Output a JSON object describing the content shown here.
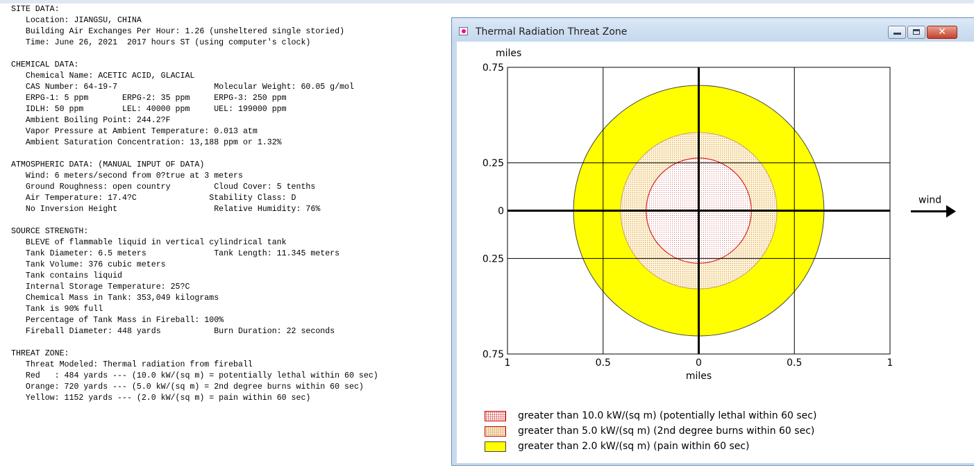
{
  "report": {
    "lines": [
      "SITE DATA:",
      "   Location: JIANGSU, CHINA",
      "   Building Air Exchanges Per Hour: 1.26 (unsheltered single storied)",
      "   Time: June 26, 2021  2017 hours ST (using computer's clock)",
      "",
      "CHEMICAL DATA:",
      "   Chemical Name: ACETIC ACID, GLACIAL",
      "   CAS Number: 64-19-7                    Molecular Weight: 60.05 g/mol",
      "   ERPG-1: 5 ppm       ERPG-2: 35 ppm     ERPG-3: 250 ppm",
      "   IDLH: 50 ppm        LEL: 40000 ppm     UEL: 199000 ppm",
      "   Ambient Boiling Point: 244.2?F",
      "   Vapor Pressure at Ambient Temperature: 0.013 atm",
      "   Ambient Saturation Concentration: 13,188 ppm or 1.32%",
      "",
      "ATMOSPHERIC DATA: (MANUAL INPUT OF DATA)",
      "   Wind: 6 meters/second from 0?true at 3 meters",
      "   Ground Roughness: open country         Cloud Cover: 5 tenths",
      "   Air Temperature: 17.4?C               Stability Class: D",
      "   No Inversion Height                    Relative Humidity: 76%",
      "",
      "SOURCE STRENGTH:",
      "   BLEVE of flammable liquid in vertical cylindrical tank",
      "   Tank Diameter: 6.5 meters              Tank Length: 11.345 meters",
      "   Tank Volume: 376 cubic meters",
      "   Tank contains liquid",
      "   Internal Storage Temperature: 25?C",
      "   Chemical Mass in Tank: 353,049 kilograms",
      "   Tank is 90% full",
      "   Percentage of Tank Mass in Fireball: 100%",
      "   Fireball Diameter: 448 yards           Burn Duration: 22 seconds",
      "",
      "THREAT ZONE:",
      "   Threat Modeled: Thermal radiation from fireball",
      "   Red   : 484 yards --- (10.0 kW/(sq m) = potentially lethal within 60 sec)",
      "   Orange: 720 yards --- (5.0 kW/(sq m) = 2nd degree burns within 60 sec)",
      "   Yellow: 1152 yards --- (2.0 kW/(sq m) = pain within 60 sec)"
    ]
  },
  "window": {
    "title": "Thermal Radiation Threat Zone",
    "icon": "app-icon",
    "buttons": {
      "minimize": "minimize-icon",
      "maximize": "maximize-icon",
      "close_glyph": "✕"
    }
  },
  "chart_data": {
    "type": "threat-zone",
    "x_unit_label": "miles",
    "y_unit_label": "miles",
    "x_ticks": [
      {
        "v": -1,
        "label": "1"
      },
      {
        "v": -0.5,
        "label": "0.5"
      },
      {
        "v": 0,
        "label": "0"
      },
      {
        "v": 0.5,
        "label": "0.5"
      },
      {
        "v": 1,
        "label": "1"
      }
    ],
    "y_ticks": [
      {
        "v": 0.75,
        "label": "0.75"
      },
      {
        "v": 0.25,
        "label": "0.25"
      },
      {
        "v": 0,
        "label": "0"
      },
      {
        "v": -0.25,
        "label": "0.25"
      },
      {
        "v": -0.75,
        "label": "0.75"
      }
    ],
    "xlim": [
      -1,
      1
    ],
    "ylim": [
      -0.75,
      0.75
    ],
    "grid": true,
    "zones": [
      {
        "name": "yellow",
        "radius_miles": 0.655,
        "fill": "#ffff00",
        "stroke": "#444444"
      },
      {
        "name": "orange",
        "radius_miles": 0.409,
        "fill": "#f6e2bb",
        "stroke": "#c8a060"
      },
      {
        "name": "red",
        "radius_miles": 0.275,
        "fill": "#fff4f4",
        "stroke": "#cc0000"
      }
    ],
    "wind_label": "wind"
  },
  "legend": [
    {
      "swatch": "red",
      "label": "greater than 10.0 kW/(sq m) (potentially lethal within 60 sec)"
    },
    {
      "swatch": "orange",
      "label": "greater than 5.0 kW/(sq m) (2nd degree burns within 60 sec)"
    },
    {
      "swatch": "yellow",
      "label": "greater than 2.0 kW/(sq m) (pain within 60 sec)"
    }
  ]
}
